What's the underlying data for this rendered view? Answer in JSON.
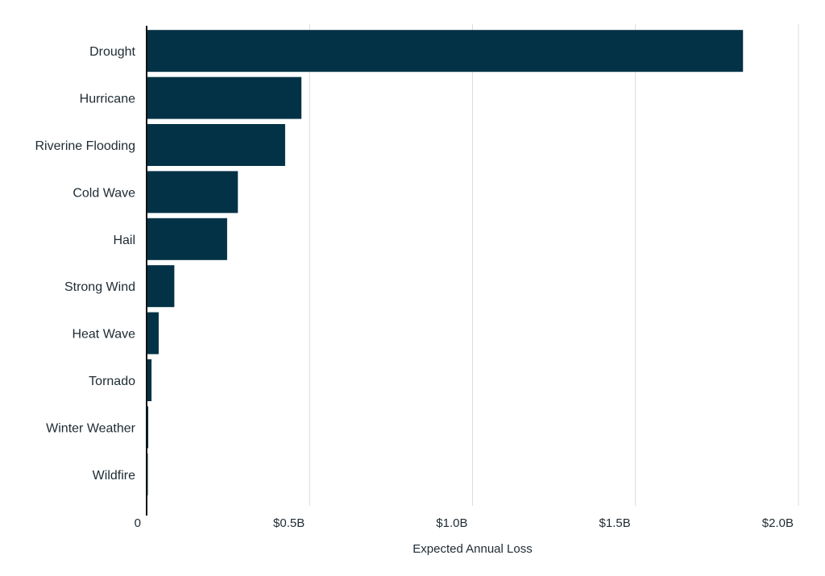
{
  "chart_data": {
    "type": "bar",
    "orientation": "horizontal",
    "categories": [
      "Drought",
      "Hurricane",
      "Riverine Flooding",
      "Cold Wave",
      "Hail",
      "Strong Wind",
      "Heat Wave",
      "Tornado",
      "Winter Weather",
      "Wildfire"
    ],
    "values": [
      1830000000,
      475000000,
      425000000,
      280000000,
      247000000,
      85000000,
      37000000,
      15000000,
      5000000,
      2000000
    ],
    "xlabel": "Expected Annual Loss",
    "ylabel": "",
    "title": "",
    "xlim": [
      0,
      2000000000
    ],
    "x_ticks": [
      0,
      500000000,
      1000000000,
      1500000000,
      2000000000
    ],
    "x_tick_labels": [
      "0",
      "$0.5B",
      "$1.0B",
      "$1.5B",
      "$2.0B"
    ],
    "grid": "vertical",
    "legend": "none",
    "bar_color": "#033246"
  }
}
